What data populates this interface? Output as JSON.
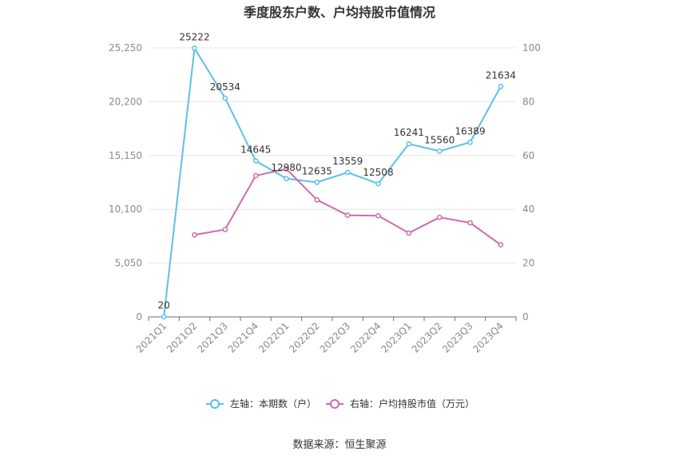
{
  "chart_data": {
    "type": "line",
    "title": "季度股东户数、户均持股市值情况",
    "source": "数据来源：恒生聚源",
    "categories": [
      "2021Q1",
      "2021Q2",
      "2021Q3",
      "2021Q4",
      "2022Q1",
      "2022Q2",
      "2022Q3",
      "2022Q4",
      "2023Q1",
      "2023Q2",
      "2023Q3",
      "2023Q4"
    ],
    "y_left": {
      "min": 0,
      "max": 25250,
      "ticks": [
        "0",
        "5,050",
        "10,100",
        "15,150",
        "20,200",
        "25,250"
      ],
      "tick_values": [
        0,
        5050,
        10100,
        15150,
        20200,
        25250
      ]
    },
    "y_right": {
      "min": 0,
      "max": 100,
      "ticks": [
        "0",
        "20",
        "40",
        "60",
        "80",
        "100"
      ],
      "tick_values": [
        0,
        20,
        40,
        60,
        80,
        100
      ]
    },
    "series": [
      {
        "name": "左轴：本期数（户）",
        "axis": "left",
        "color": "#5bc0eb",
        "values": [
          20,
          25222,
          20534,
          14645,
          12980,
          12635,
          13559,
          12508,
          16241,
          15560,
          16389,
          21634
        ],
        "labels": [
          "20",
          "25222",
          "20534",
          "14645",
          "12980",
          "12635",
          "13559",
          "12508",
          "16241",
          "15560",
          "16389",
          "21634"
        ]
      },
      {
        "name": "右轴：户均持股市值（万元）",
        "axis": "right",
        "color": "#cf6aab",
        "values": [
          null,
          30.5,
          32.5,
          52.5,
          55.0,
          43.5,
          37.8,
          37.6,
          31.2,
          37.0,
          35.0,
          26.8
        ]
      }
    ],
    "grid": true,
    "legend_position": "bottom"
  }
}
